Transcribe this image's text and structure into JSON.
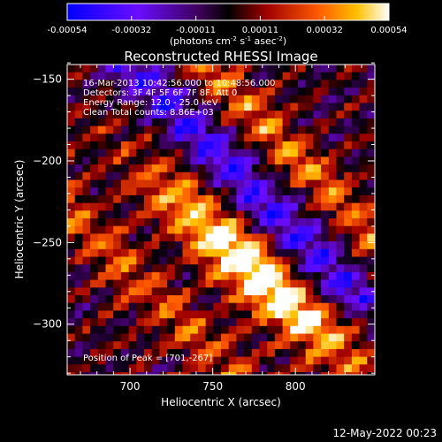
{
  "title": "Reconstructed RHESSI Image",
  "colorbar": {
    "ticks": [
      "-0.00054",
      "-0.00032",
      "-0.00011",
      "0.00011",
      "0.00032",
      "0.00054"
    ],
    "units_main": "(photons cm",
    "units_exp1": "-2",
    "units_mid": " s",
    "units_exp2": "-1",
    "units_tail": " asec",
    "units_exp3": "-2",
    "units_close": ")"
  },
  "annotations": {
    "time_range": "16-Mar-2013 10:42:56.000 to 10:48:56.000",
    "detectors": "Detectors: 3F 4F 5F 6F 7F 8F, Att 0",
    "energy": "Energy Range: 12.0 - 25.0 keV",
    "clean": "Clean     Total counts: 8.86E+03",
    "peak": "Position of Peak = [701,-267]"
  },
  "timestamp": "12-May-2022 00:23",
  "chart_data": {
    "type": "heatmap",
    "title": "Reconstructed RHESSI Image",
    "xlabel": "Heliocentric X (arcsec)",
    "ylabel": "Heliocentric Y (arcsec)",
    "xlim": [
      662,
      848
    ],
    "ylim": [
      -331,
      -141
    ],
    "xticks": [
      700,
      750,
      800
    ],
    "yticks": [
      -150,
      -200,
      -250,
      -300
    ],
    "colorbar_range": [
      -0.00054,
      0.00054
    ],
    "peak": [
      701,
      -267
    ]
  }
}
